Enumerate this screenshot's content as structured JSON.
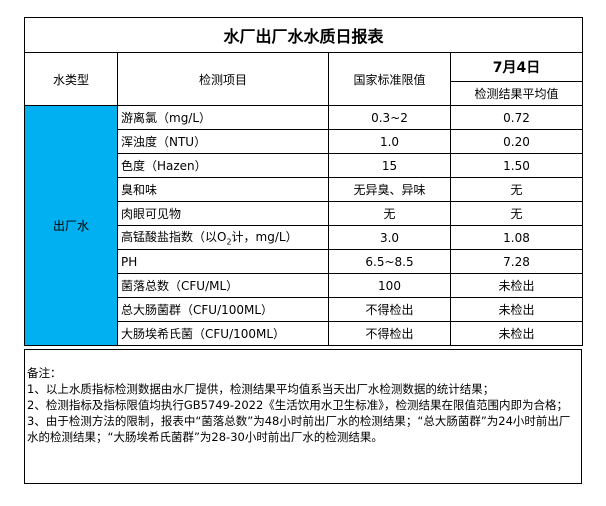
{
  "title": "水厂出厂水水质日报表",
  "headers": {
    "type": "水类型",
    "item": "检测项目",
    "limit": "国家标准限值",
    "date": "7月4日",
    "result": "检测结果平均值"
  },
  "water_type": "出厂水",
  "type_color": "#00B0F0",
  "rows": [
    {
      "item": "游离氯（mg/L）",
      "limit": "0.3~2",
      "result": "0.72"
    },
    {
      "item": "浑浊度（NTU）",
      "limit": "1.0",
      "result": "0.20"
    },
    {
      "item": "色度（Hazen）",
      "limit": "15",
      "result": "1.50"
    },
    {
      "item": "臭和味",
      "limit": "无异臭、异味",
      "result": "无"
    },
    {
      "item": "肉眼可见物",
      "limit": "无",
      "result": "无"
    },
    {
      "item_pre": "高锰酸盐指数（以O",
      "item_sub": "2",
      "item_post": "计，mg/L）",
      "limit": "3.0",
      "result": "1.08"
    },
    {
      "item": "PH",
      "limit": "6.5~8.5",
      "result": "7.28"
    },
    {
      "item": "菌落总数（CFU/ML）",
      "limit": "100",
      "result": "未检出"
    },
    {
      "item": "总大肠菌群（CFU/100ML）",
      "limit": "不得检出",
      "result": "未检出"
    },
    {
      "item": "大肠埃希氏菌（CFU/100ML）",
      "limit": "不得检出",
      "result": "未检出"
    }
  ],
  "notes": {
    "heading": "备注：",
    "lines": [
      "1、以上水质指标检测数据由水厂提供，检测结果平均值系当天出厂水检测数据的统计结果；",
      "2、检测指标及指标限值均执行GB5749-2022《生活饮用水卫生标准》，检测结果在限值范围内即为合格；",
      "3、由于检测方法的限制，报表中“菌落总数”为48小时前出厂水的检测结果；“总大肠菌群”为24小时前出厂水的检测结果；“大肠埃希氏菌群”为28-30小时前出厂水的检测结果。"
    ]
  }
}
